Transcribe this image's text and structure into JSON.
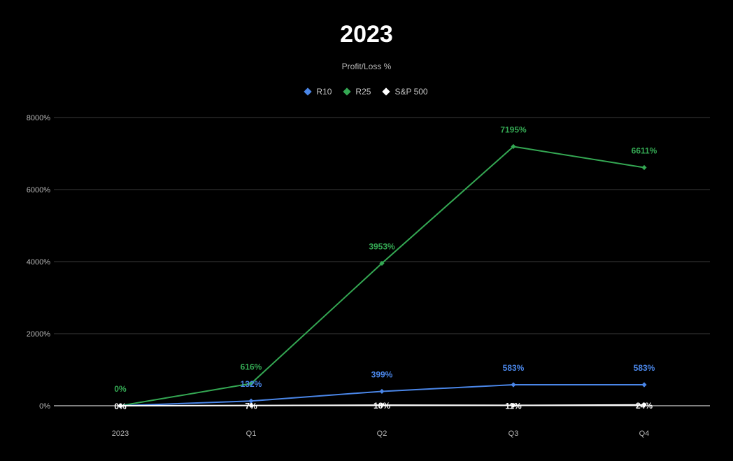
{
  "chart_data": {
    "type": "line",
    "title": "2023",
    "subtitle": "Profit/Loss %",
    "categories": [
      "2023",
      "Q1",
      "Q2",
      "Q3",
      "Q4"
    ],
    "y_ticks": [
      "0%",
      "2000%",
      "4000%",
      "6000%",
      "8000%"
    ],
    "ylim": [
      0,
      8000
    ],
    "grid": true,
    "legend_position": "top-center",
    "series": [
      {
        "name": "R10",
        "color": "#4a86e8",
        "values": [
          0,
          132,
          399,
          583,
          583
        ],
        "labels": [
          "",
          "132%",
          "399%",
          "583%",
          "583%"
        ]
      },
      {
        "name": "R25",
        "color": "#34a853",
        "values": [
          0,
          616,
          3953,
          7195,
          6611
        ],
        "labels": [
          "0%",
          "616%",
          "3953%",
          "7195%",
          "6611%"
        ]
      },
      {
        "name": "S&P 500",
        "color": "#ffffff",
        "values": [
          0,
          7,
          16,
          11,
          24
        ],
        "labels": [
          "0%",
          "7%",
          "16%",
          "11%",
          "24%"
        ]
      }
    ]
  }
}
